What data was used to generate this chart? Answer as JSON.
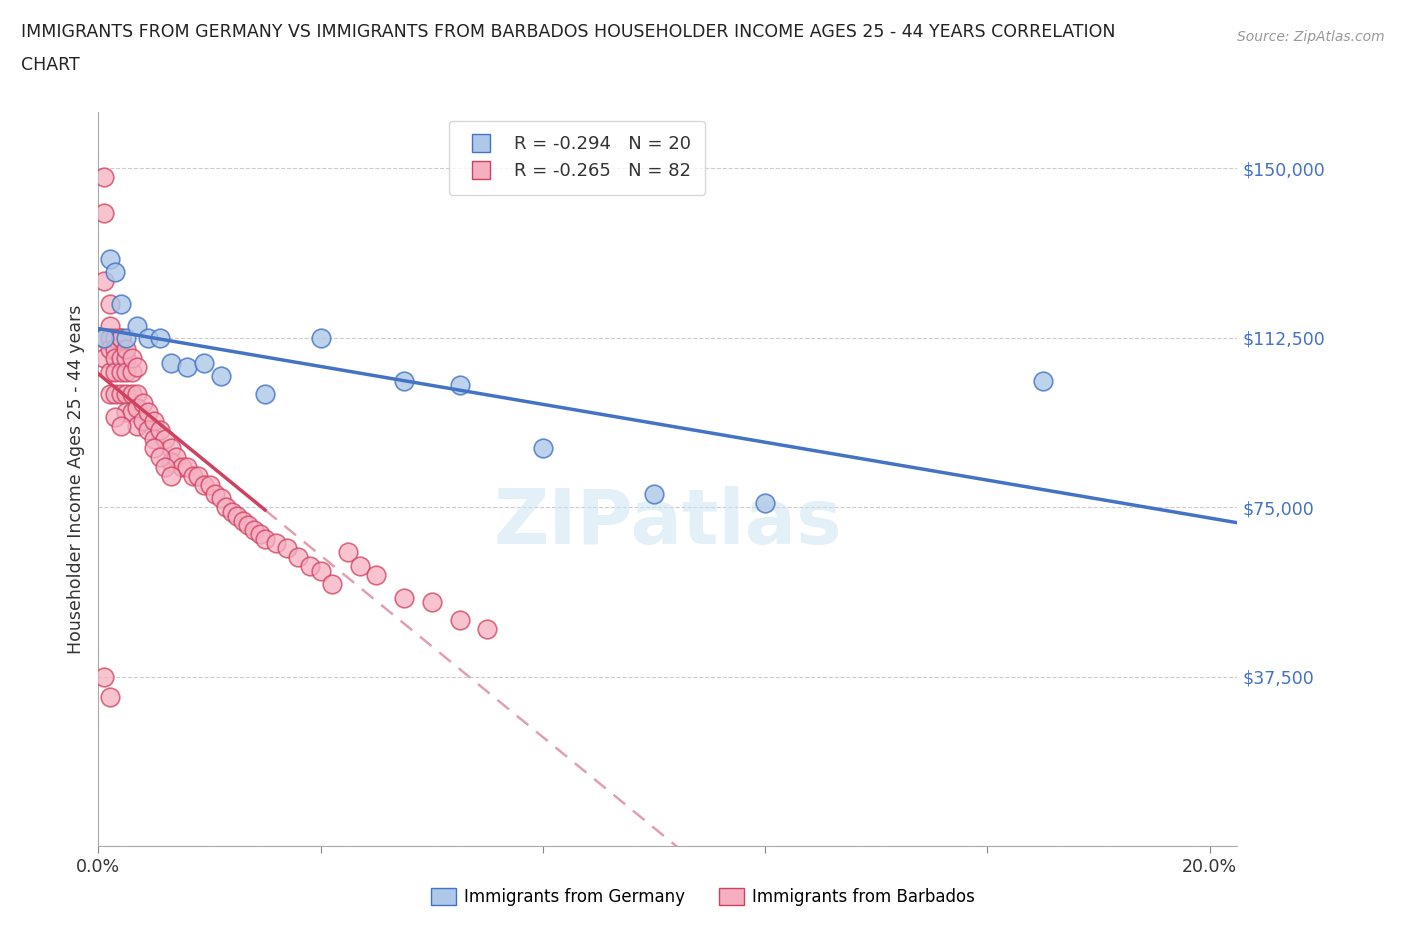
{
  "title_line1": "IMMIGRANTS FROM GERMANY VS IMMIGRANTS FROM BARBADOS HOUSEHOLDER INCOME AGES 25 - 44 YEARS CORRELATION",
  "title_line2": "CHART",
  "source": "Source: ZipAtlas.com",
  "ylabel": "Householder Income Ages 25 - 44 years",
  "xlim": [
    0.0,
    0.205
  ],
  "ylim": [
    0,
    162500
  ],
  "yticks": [
    0,
    37500,
    75000,
    112500,
    150000
  ],
  "xticks": [
    0.0,
    0.04,
    0.08,
    0.12,
    0.16,
    0.2
  ],
  "r_germany": -0.294,
  "n_germany": 20,
  "r_barbados": -0.265,
  "n_barbados": 82,
  "color_germany": "#adc8e8",
  "color_barbados": "#f5afc0",
  "trendline_germany_color": "#4472c4",
  "trendline_barbados_color": "#d04060",
  "trendline_barbados_dashed_color": "#e0a0b0",
  "legend_label_germany": "Immigrants from Germany",
  "legend_label_barbados": "Immigrants from Barbados",
  "germany_x": [
    0.001,
    0.002,
    0.003,
    0.004,
    0.005,
    0.007,
    0.009,
    0.011,
    0.013,
    0.016,
    0.019,
    0.022,
    0.03,
    0.04,
    0.055,
    0.065,
    0.08,
    0.1,
    0.12,
    0.17
  ],
  "germany_y": [
    112500,
    130000,
    127000,
    120000,
    112500,
    115000,
    112500,
    112500,
    107000,
    106000,
    107000,
    104000,
    100000,
    112500,
    103000,
    102000,
    88000,
    78000,
    76000,
    103000
  ],
  "barbados_x": [
    0.001,
    0.001,
    0.001,
    0.001,
    0.001,
    0.002,
    0.002,
    0.002,
    0.002,
    0.002,
    0.002,
    0.003,
    0.003,
    0.003,
    0.003,
    0.003,
    0.004,
    0.004,
    0.004,
    0.004,
    0.005,
    0.005,
    0.005,
    0.005,
    0.006,
    0.006,
    0.006,
    0.007,
    0.007,
    0.007,
    0.008,
    0.008,
    0.009,
    0.009,
    0.01,
    0.01,
    0.011,
    0.012,
    0.013,
    0.013,
    0.014,
    0.015,
    0.016,
    0.017,
    0.018,
    0.019,
    0.02,
    0.021,
    0.022,
    0.023,
    0.024,
    0.025,
    0.026,
    0.027,
    0.028,
    0.029,
    0.03,
    0.032,
    0.034,
    0.036,
    0.038,
    0.04,
    0.042,
    0.045,
    0.047,
    0.05,
    0.055,
    0.06,
    0.065,
    0.07,
    0.01,
    0.011,
    0.012,
    0.013,
    0.004,
    0.005,
    0.006,
    0.007,
    0.001,
    0.002,
    0.003,
    0.004
  ],
  "barbados_y": [
    148000,
    140000,
    125000,
    112500,
    108000,
    120000,
    115000,
    112500,
    110000,
    105000,
    100000,
    112500,
    110000,
    108000,
    105000,
    100000,
    112500,
    108000,
    105000,
    100000,
    108000,
    105000,
    100000,
    96000,
    105000,
    100000,
    96000,
    100000,
    97000,
    93000,
    98000,
    94000,
    96000,
    92000,
    94000,
    90000,
    92000,
    90000,
    88000,
    85000,
    86000,
    84000,
    84000,
    82000,
    82000,
    80000,
    80000,
    78000,
    77000,
    75000,
    74000,
    73000,
    72000,
    71000,
    70000,
    69000,
    68000,
    67000,
    66000,
    64000,
    62000,
    61000,
    58000,
    65000,
    62000,
    60000,
    55000,
    54000,
    50000,
    48000,
    88000,
    86000,
    84000,
    82000,
    112500,
    110000,
    108000,
    106000,
    37500,
    33000,
    95000,
    93000
  ]
}
